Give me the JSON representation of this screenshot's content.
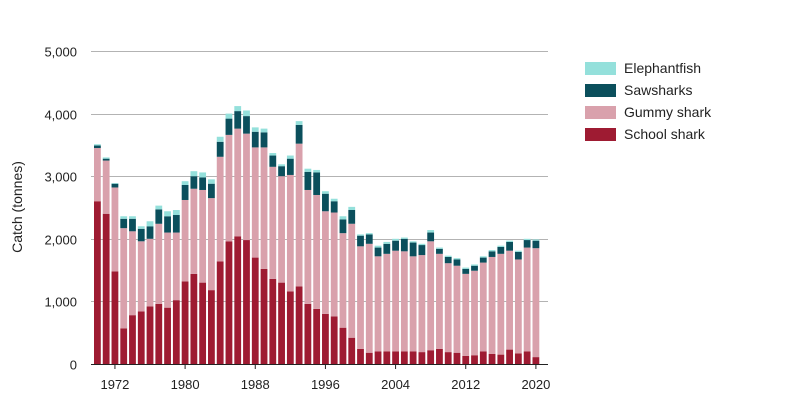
{
  "chart_data": {
    "type": "bar",
    "stacked": true,
    "ylabel": "Catch (tonnes)",
    "xlabel": "",
    "ylim": [
      0,
      5000
    ],
    "yticks": [
      0,
      1000,
      2000,
      3000,
      4000,
      5000
    ],
    "ytick_labels": [
      "0",
      "1,000",
      "2,000",
      "3,000",
      "4,000",
      "5,000"
    ],
    "xticks": [
      1972,
      1980,
      1988,
      1996,
      2004,
      2012,
      2020
    ],
    "grid": true,
    "legend_position": "top-right",
    "years": [
      1970,
      1971,
      1972,
      1973,
      1974,
      1975,
      1976,
      1977,
      1978,
      1979,
      1980,
      1981,
      1982,
      1983,
      1984,
      1985,
      1986,
      1987,
      1988,
      1989,
      1990,
      1991,
      1992,
      1993,
      1994,
      1995,
      1996,
      1997,
      1998,
      1999,
      2000,
      2001,
      2002,
      2003,
      2004,
      2005,
      2006,
      2007,
      2008,
      2009,
      2010,
      2011,
      2012,
      2013,
      2014,
      2015,
      2016,
      2017,
      2018,
      2019,
      2020
    ],
    "series": [
      {
        "name": "School shark",
        "color": "#9e1b32",
        "values": [
          2600,
          2400,
          1480,
          570,
          780,
          840,
          920,
          960,
          900,
          1020,
          1320,
          1440,
          1300,
          1180,
          1640,
          1960,
          2040,
          1980,
          1700,
          1520,
          1360,
          1300,
          1160,
          1240,
          960,
          880,
          800,
          760,
          580,
          420,
          240,
          180,
          200,
          200,
          200,
          200,
          200,
          190,
          220,
          240,
          190,
          180,
          130,
          140,
          200,
          160,
          150,
          230,
          170,
          200,
          110
        ]
      },
      {
        "name": "Gummy shark",
        "color": "#d9a1ac",
        "values": [
          850,
          850,
          1340,
          1600,
          1340,
          1120,
          1080,
          1280,
          1200,
          1080,
          1300,
          1360,
          1480,
          1470,
          1670,
          1700,
          1720,
          1700,
          1760,
          1940,
          1790,
          1700,
          1860,
          2280,
          1820,
          1820,
          1640,
          1660,
          1510,
          1820,
          1640,
          1740,
          1520,
          1560,
          1610,
          1600,
          1520,
          1550,
          1740,
          1520,
          1420,
          1390,
          1310,
          1350,
          1420,
          1550,
          1610,
          1580,
          1500,
          1660,
          1740
        ]
      },
      {
        "name": "Sawsharks",
        "color": "#0b4f5c",
        "values": [
          40,
          30,
          60,
          150,
          200,
          200,
          200,
          230,
          260,
          280,
          240,
          200,
          200,
          230,
          240,
          260,
          280,
          280,
          250,
          240,
          180,
          160,
          260,
          300,
          290,
          360,
          280,
          180,
          220,
          220,
          170,
          150,
          140,
          160,
          160,
          200,
          220,
          160,
          140,
          80,
          100,
          100,
          80,
          80,
          80,
          90,
          110,
          140,
          120,
          120,
          120
        ]
      },
      {
        "name": "Elephantfish",
        "color": "#94e0db",
        "values": [
          20,
          20,
          10,
          40,
          40,
          40,
          80,
          60,
          80,
          80,
          60,
          80,
          80,
          70,
          80,
          80,
          80,
          90,
          70,
          60,
          40,
          30,
          50,
          60,
          50,
          40,
          40,
          40,
          50,
          50,
          20,
          20,
          30,
          30,
          30,
          20,
          20,
          20,
          40,
          20,
          20,
          20,
          20,
          20,
          20,
          20,
          20,
          20,
          20,
          20,
          20
        ]
      }
    ]
  }
}
